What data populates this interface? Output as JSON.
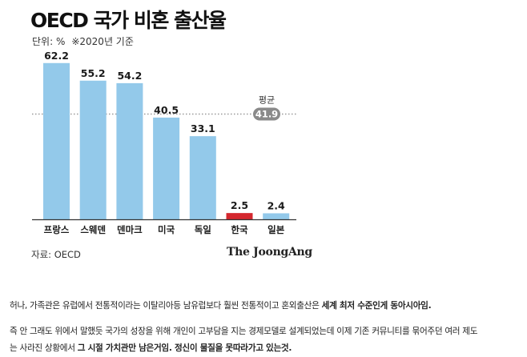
{
  "chart_data": {
    "type": "bar",
    "title": "OECD 국가 비혼 출산율",
    "unit_label": "단위: %",
    "note": "※2020년 기준",
    "categories": [
      "프랑스",
      "스웨덴",
      "덴마크",
      "미국",
      "독일",
      "한국",
      "일본"
    ],
    "values": [
      62.2,
      55.2,
      54.2,
      40.5,
      33.1,
      2.5,
      2.4
    ],
    "value_labels": [
      "62.2",
      "55.2",
      "54.2",
      "40.5",
      "33.1",
      "2.5",
      "2.4"
    ],
    "highlight_category": "한국",
    "average": {
      "label": "평균",
      "value": 41.9,
      "value_label": "41.9"
    },
    "ylim": [
      0,
      65
    ],
    "grid": false,
    "colors": {
      "bar": "#93c9ea",
      "highlight": "#d4272e",
      "average_line": "#999999",
      "average_badge": "#8a8a8a"
    },
    "source": "자료: OECD",
    "logo": "The JoongAng"
  },
  "article": {
    "p1_a": "허나, 가족관은 유럽에서 전통적이라는 이탈리아등 남유럽보다 훨씬 전통적이고 혼외출산은 ",
    "p1_b": "세계 최저 수준인게 동아시아임.",
    "p2_a": "즉 안 그래도 위에서 말했듯 국가의 성장을 위해 개인이 고부담을 지는 경제모델로 설계되었는데 이제 기존 커뮤니티를 묶어주던 여러 제도",
    "p2_b": "는 사라진 상황에서 ",
    "p2_c": "그 시절 가치관만 남은거임. 정신이 물질을 못따라가고 있는것."
  }
}
